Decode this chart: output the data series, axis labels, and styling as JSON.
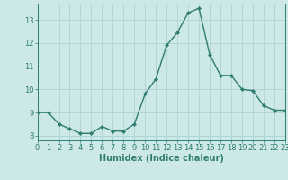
{
  "x": [
    0,
    1,
    2,
    3,
    4,
    5,
    6,
    7,
    8,
    9,
    10,
    11,
    12,
    13,
    14,
    15,
    16,
    17,
    18,
    19,
    20,
    21,
    22,
    23
  ],
  "y": [
    9.0,
    9.0,
    8.5,
    8.3,
    8.1,
    8.1,
    8.4,
    8.2,
    8.2,
    8.5,
    9.8,
    10.45,
    11.9,
    12.45,
    13.3,
    13.5,
    11.5,
    10.6,
    10.6,
    10.0,
    9.95,
    9.3,
    9.1,
    9.1
  ],
  "line_color": "#2e7d6e",
  "marker": "D",
  "marker_size": 2,
  "bg_color": "#cde8e8",
  "grid_color": "#aacece",
  "xlabel": "Humidex (Indice chaleur)",
  "xlim": [
    0,
    23
  ],
  "ylim": [
    7.8,
    13.7
  ],
  "yticks": [
    8,
    9,
    10,
    11,
    12,
    13
  ],
  "xticks": [
    0,
    1,
    2,
    3,
    4,
    5,
    6,
    7,
    8,
    9,
    10,
    11,
    12,
    13,
    14,
    15,
    16,
    17,
    18,
    19,
    20,
    21,
    22,
    23
  ],
  "xlabel_fontsize": 7,
  "tick_fontsize": 6,
  "linewidth": 1.0
}
